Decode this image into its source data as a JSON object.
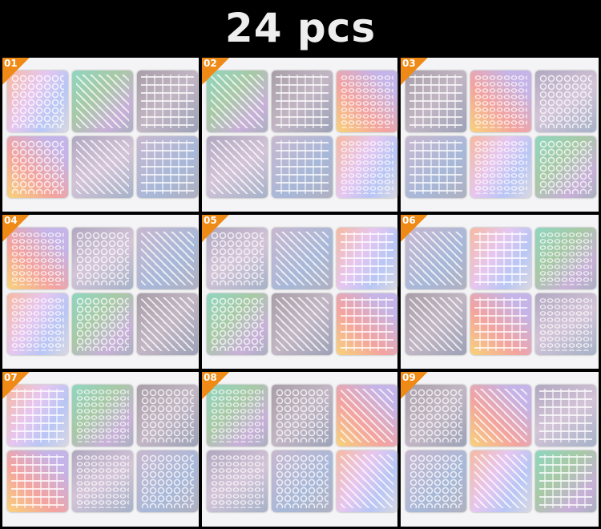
{
  "title": "24 pcs",
  "colors": {
    "accent": "#ef8a16",
    "background": "#000000",
    "panel": "#f4f4f6"
  },
  "cells": [
    {
      "label": "01"
    },
    {
      "label": "02"
    },
    {
      "label": "03"
    },
    {
      "label": "04"
    },
    {
      "label": "05"
    },
    {
      "label": "06"
    },
    {
      "label": "07"
    },
    {
      "label": "08"
    },
    {
      "label": "09"
    }
  ]
}
